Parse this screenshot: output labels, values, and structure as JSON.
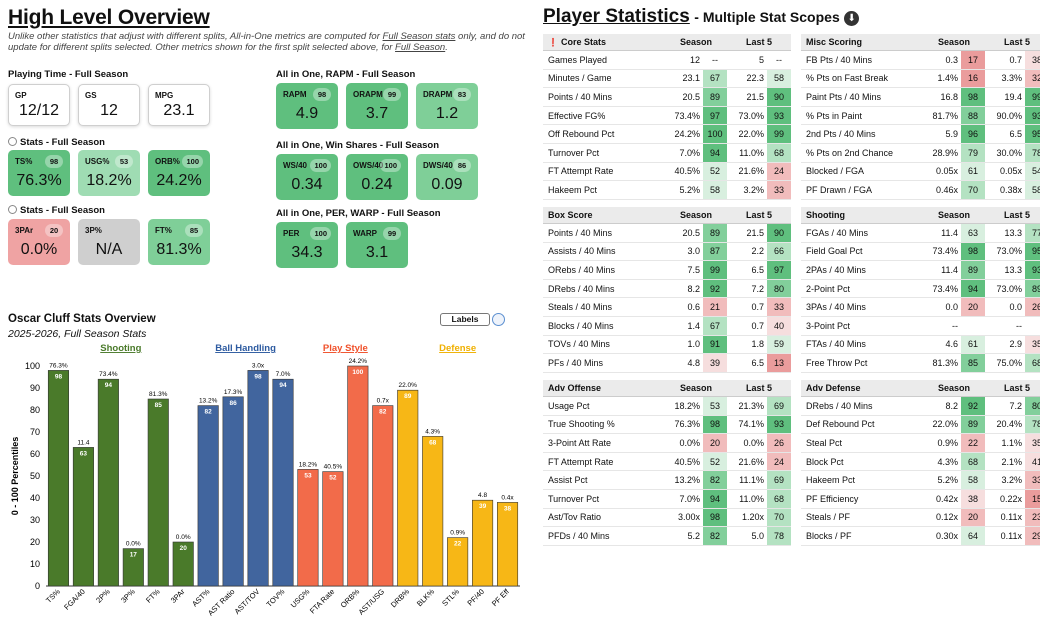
{
  "overview": {
    "title": "High Level Overview",
    "note_pre": "Unlike other statistics that adjust with different splits, All-in-One metrics are computed for ",
    "note_link1": "Full Season stats",
    "note_mid": " only, and do not update for different splits selected. Other metrics shown for the first split selected above, for ",
    "note_link2": "Full Season",
    "note_end": ".",
    "playing_time": {
      "title": "Playing Time - Full Season",
      "cards": [
        {
          "label": "GP",
          "value": "12/12"
        },
        {
          "label": "GS",
          "value": "12"
        },
        {
          "label": "MPG",
          "value": "23.1"
        }
      ]
    },
    "stats1": {
      "title": "Stats - Full Season",
      "cards": [
        {
          "label": "TS%",
          "pct": "98",
          "value": "76.3%"
        },
        {
          "label": "USG%",
          "pct": "53",
          "value": "18.2%"
        },
        {
          "label": "ORB%",
          "pct": "100",
          "value": "24.2%"
        }
      ]
    },
    "stats2": {
      "title": "Stats - Full Season",
      "cards": [
        {
          "label": "3PAr",
          "pct": "20",
          "value": "0.0%"
        },
        {
          "label": "3P%",
          "pct": "",
          "value": "N/A"
        },
        {
          "label": "FT%",
          "pct": "85",
          "value": "81.3%"
        }
      ]
    },
    "rapm": {
      "title": "All in One, RAPM - Full Season",
      "cards": [
        {
          "label": "RAPM",
          "pct": "98",
          "value": "4.9"
        },
        {
          "label": "ORAPM",
          "pct": "99",
          "value": "3.7"
        },
        {
          "label": "DRAPM",
          "pct": "83",
          "value": "1.2"
        }
      ]
    },
    "winshares": {
      "title": "All in One, Win Shares - Full Season",
      "cards": [
        {
          "label": "WS/40",
          "pct": "100",
          "value": "0.34"
        },
        {
          "label": "OWS/40",
          "pct": "100",
          "value": "0.24"
        },
        {
          "label": "DWS/40",
          "pct": "86",
          "value": "0.09"
        }
      ]
    },
    "per": {
      "title": "All in One, PER, WARP - Full Season",
      "cards": [
        {
          "label": "PER",
          "pct": "100",
          "value": "34.3"
        },
        {
          "label": "WARP",
          "pct": "99",
          "value": "3.1"
        }
      ]
    }
  },
  "chart_data": {
    "type": "bar",
    "title": "Oscar Cluff Stats Overview",
    "subtitle": "2025-2026, Full Season Stats",
    "labels_button": "Labels",
    "ylabel": "0 - 100 Percentiles",
    "ylim": [
      0,
      100
    ],
    "yticks": [
      "0",
      "10",
      "20",
      "30",
      "40",
      "50",
      "60",
      "70",
      "80",
      "90",
      "100"
    ],
    "groups": [
      {
        "name": "Shooting",
        "color": "#4a7a2a",
        "text_color": "#4a7a2a"
      },
      {
        "name": "Ball Handling",
        "color": "#41659e",
        "text_color": "#2c5aa0"
      },
      {
        "name": "Play Style",
        "color": "#f26b4a",
        "text_color": "#f0502a"
      },
      {
        "name": "Defense",
        "color": "#f7b716",
        "text_color": "#f0b000"
      }
    ],
    "bars": [
      {
        "cat": "TS%",
        "value": 98,
        "label": "76.3%",
        "group": 0
      },
      {
        "cat": "FGA/40",
        "value": 63,
        "label": "11.4",
        "group": 0
      },
      {
        "cat": "2P%",
        "value": 94,
        "label": "73.4%",
        "group": 0
      },
      {
        "cat": "3P%",
        "value": 17,
        "label": "0.0%",
        "group": 0
      },
      {
        "cat": "FT%",
        "value": 85,
        "label": "81.3%",
        "group": 0
      },
      {
        "cat": "3PAr",
        "value": 20,
        "label": "0.0%",
        "group": 0
      },
      {
        "cat": "AST%",
        "value": 82,
        "label": "13.2%",
        "group": 1
      },
      {
        "cat": "AST Ratio",
        "value": 86,
        "label": "17.3%",
        "group": 1
      },
      {
        "cat": "AST/TOV",
        "value": 98,
        "label": "3.0x",
        "group": 1
      },
      {
        "cat": "TOV%",
        "value": 94,
        "label": "7.0%",
        "group": 1
      },
      {
        "cat": "USG%",
        "value": 53,
        "label": "18.2%",
        "group": 2
      },
      {
        "cat": "FTA Rate",
        "value": 52,
        "label": "40.5%",
        "group": 2
      },
      {
        "cat": "ORB%",
        "value": 100,
        "label": "24.2%",
        "group": 2
      },
      {
        "cat": "AST/USG",
        "value": 82,
        "label": "0.7x",
        "group": 2
      },
      {
        "cat": "DRB%",
        "value": 89,
        "label": "22.0%",
        "group": 3
      },
      {
        "cat": "BLK%",
        "value": 68,
        "label": "4.3%",
        "group": 3
      },
      {
        "cat": "STL%",
        "value": 22,
        "label": "0.9%",
        "group": 3
      },
      {
        "cat": "PF/40",
        "value": 39,
        "label": "4.8",
        "group": 3
      },
      {
        "cat": "PF Eff",
        "value": 38,
        "label": "0.4x",
        "group": 3
      }
    ]
  },
  "player": {
    "title": "Player Statistics",
    "subtitle": "- Multiple Stat Scopes",
    "tables": [
      {
        "id": "core",
        "title": "Core Stats",
        "col_a": "Season",
        "col_b": "Last 5",
        "rows": [
          [
            "Games Played",
            "12",
            "--",
            "5",
            "--"
          ],
          [
            "Minutes / Game",
            "23.1",
            "67",
            "22.3",
            "58"
          ],
          [
            "Points / 40 Mins",
            "20.5",
            "89",
            "21.5",
            "90"
          ],
          [
            "Effective FG%",
            "73.4%",
            "97",
            "73.0%",
            "93"
          ],
          [
            "Off Rebound Pct",
            "24.2%",
            "100",
            "22.0%",
            "99"
          ],
          [
            "Turnover Pct",
            "7.0%",
            "94",
            "11.0%",
            "68"
          ],
          [
            "FT Attempt Rate",
            "40.5%",
            "52",
            "21.6%",
            "24"
          ],
          [
            "Hakeem Pct",
            "5.2%",
            "58",
            "3.2%",
            "33"
          ]
        ]
      },
      {
        "id": "misc",
        "title": "Misc Scoring",
        "col_a": "Season",
        "col_b": "Last 5",
        "rows": [
          [
            "FB Pts / 40 Mins",
            "0.3",
            "17",
            "0.7",
            "38"
          ],
          [
            "% Pts on Fast Break",
            "1.4%",
            "16",
            "3.3%",
            "32"
          ],
          [
            "Paint Pts / 40 Mins",
            "16.8",
            "98",
            "19.4",
            "99"
          ],
          [
            "% Pts in Paint",
            "81.7%",
            "88",
            "90.0%",
            "93"
          ],
          [
            "2nd Pts / 40 Mins",
            "5.9",
            "96",
            "6.5",
            "95"
          ],
          [
            "% Pts on 2nd Chance",
            "28.9%",
            "79",
            "30.0%",
            "78"
          ],
          [
            "Blocked / FGA",
            "0.05x",
            "61",
            "0.05x",
            "54"
          ],
          [
            "PF Drawn / FGA",
            "0.46x",
            "70",
            "0.38x",
            "58"
          ]
        ]
      },
      {
        "id": "box",
        "title": "Box Score",
        "col_a": "Season",
        "col_b": "Last 5",
        "rows": [
          [
            "Points / 40 Mins",
            "20.5",
            "89",
            "21.5",
            "90"
          ],
          [
            "Assists / 40 Mins",
            "3.0",
            "87",
            "2.2",
            "66"
          ],
          [
            "ORebs / 40 Mins",
            "7.5",
            "99",
            "6.5",
            "97"
          ],
          [
            "DRebs / 40 Mins",
            "8.2",
            "92",
            "7.2",
            "80"
          ],
          [
            "Steals / 40 Mins",
            "0.6",
            "21",
            "0.7",
            "33"
          ],
          [
            "Blocks / 40 Mins",
            "1.4",
            "67",
            "0.7",
            "40"
          ],
          [
            "TOVs / 40 Mins",
            "1.0",
            "91",
            "1.8",
            "59"
          ],
          [
            "PFs / 40 Mins",
            "4.8",
            "39",
            "6.5",
            "13"
          ]
        ]
      },
      {
        "id": "shooting",
        "title": "Shooting",
        "col_a": "Season",
        "col_b": "Last 5",
        "rows": [
          [
            "FGAs / 40 Mins",
            "11.4",
            "63",
            "13.3",
            "77"
          ],
          [
            "Field Goal Pct",
            "73.4%",
            "98",
            "73.0%",
            "95"
          ],
          [
            "2PAs / 40 Mins",
            "11.4",
            "89",
            "13.3",
            "93"
          ],
          [
            "2-Point Pct",
            "73.4%",
            "94",
            "73.0%",
            "89"
          ],
          [
            "3PAs / 40 Mins",
            "0.0",
            "20",
            "0.0",
            "26"
          ],
          [
            "3-Point Pct",
            "--",
            "",
            "--",
            ""
          ],
          [
            "FTAs / 40 Mins",
            "4.6",
            "61",
            "2.9",
            "35"
          ],
          [
            "Free Throw Pct",
            "81.3%",
            "85",
            "75.0%",
            "68"
          ]
        ]
      },
      {
        "id": "advoff",
        "title": "Adv Offense",
        "col_a": "Season",
        "col_b": "Last 5",
        "rows": [
          [
            "Usage Pct",
            "18.2%",
            "53",
            "21.3%",
            "69"
          ],
          [
            "True Shooting %",
            "76.3%",
            "98",
            "74.1%",
            "93"
          ],
          [
            "3-Point Att Rate",
            "0.0%",
            "20",
            "0.0%",
            "26"
          ],
          [
            "FT Attempt Rate",
            "40.5%",
            "52",
            "21.6%",
            "24"
          ],
          [
            "Assist Pct",
            "13.2%",
            "82",
            "11.1%",
            "69"
          ],
          [
            "Turnover Pct",
            "7.0%",
            "94",
            "11.0%",
            "68"
          ],
          [
            "Ast/Tov Ratio",
            "3.00x",
            "98",
            "1.20x",
            "70"
          ],
          [
            "PFDs / 40 Mins",
            "5.2",
            "82",
            "5.0",
            "78"
          ]
        ]
      },
      {
        "id": "advdef",
        "title": "Adv Defense",
        "col_a": "Season",
        "col_b": "Last 5",
        "rows": [
          [
            "DRebs / 40 Mins",
            "8.2",
            "92",
            "7.2",
            "80"
          ],
          [
            "Def Rebound Pct",
            "22.0%",
            "89",
            "20.4%",
            "78"
          ],
          [
            "Steal Pct",
            "0.9%",
            "22",
            "1.1%",
            "35"
          ],
          [
            "Block Pct",
            "4.3%",
            "68",
            "2.1%",
            "41"
          ],
          [
            "Hakeem Pct",
            "5.2%",
            "58",
            "3.2%",
            "33"
          ],
          [
            "PF Efficiency",
            "0.42x",
            "38",
            "0.22x",
            "15"
          ],
          [
            "Steals / PF",
            "0.12x",
            "20",
            "0.11x",
            "23"
          ],
          [
            "Blocks / PF",
            "0.30x",
            "64",
            "0.11x",
            "29"
          ]
        ]
      }
    ]
  }
}
